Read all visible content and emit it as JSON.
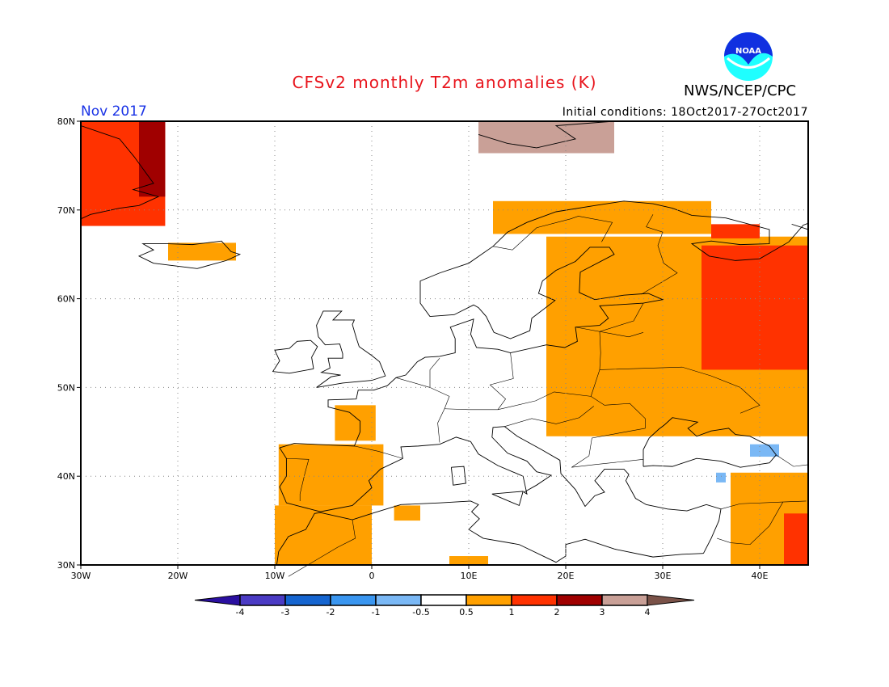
{
  "header": {
    "title": "CFSv2 monthly T2m anomalies (K)",
    "valid_month": "Nov 2017",
    "initial_conditions": "Initial conditions: 18Oct2017-27Oct2017",
    "organization": "NWS/NCEP/CPC",
    "logo_text": "NOAA"
  },
  "chart_data": {
    "type": "map",
    "title": "CFSv2 monthly T2m anomalies (K)",
    "lon_range": [
      -30,
      45
    ],
    "lat_range": [
      30,
      80
    ],
    "grid": true,
    "x_ticks": [
      "30W",
      "20W",
      "10W",
      "0",
      "10E",
      "20E",
      "30E",
      "40E"
    ],
    "y_ticks": [
      "30N",
      "40N",
      "50N",
      "60N",
      "70N",
      "80N"
    ],
    "colorbar": {
      "ticks": [
        "-4",
        "-3",
        "-2",
        "-1",
        "-0.5",
        "0.5",
        "1",
        "2",
        "3",
        "4"
      ],
      "colors": [
        "#2a0fa0",
        "#4b3bc4",
        "#1565d0",
        "#3a96f0",
        "#7ab8f5",
        "#ffffff",
        "#ffa000",
        "#ff3200",
        "#a00000",
        "#c9a097",
        "#7a5248"
      ]
    },
    "anomaly_regions": [
      {
        "name": "greenland",
        "class": "1-2",
        "lon": [
          -30,
          -21.3
        ],
        "lat": [
          68.2,
          80
        ]
      },
      {
        "name": "greenland-east",
        "class": "2-3",
        "lon": [
          -24,
          -21.3
        ],
        "lat": [
          71.5,
          80
        ]
      },
      {
        "name": "iceland",
        "class": "0.5-1",
        "lon": [
          -21,
          -14
        ],
        "lat": [
          64.3,
          66.3
        ]
      },
      {
        "name": "iberia",
        "class": "0.5-1",
        "lon": [
          -9.6,
          1.2
        ],
        "lat": [
          36.7,
          43.6
        ]
      },
      {
        "name": "western-france",
        "class": "0.5-1",
        "lon": [
          -3.8,
          0.4
        ],
        "lat": [
          44,
          48
        ]
      },
      {
        "name": "morocco-algeria",
        "class": "0.5-1",
        "lon": [
          -10,
          0
        ],
        "lat": [
          30,
          36.7
        ]
      },
      {
        "name": "tunisia",
        "class": "0.5-1",
        "lon": [
          2.3,
          5
        ],
        "lat": [
          35,
          36.7
        ]
      },
      {
        "name": "libya",
        "class": "0.5-1",
        "lon": [
          8,
          12
        ],
        "lat": [
          30,
          31
        ]
      },
      {
        "name": "northern-scandinavia",
        "class": "0.5-1",
        "lon": [
          12.5,
          35
        ],
        "lat": [
          67.3,
          71
        ]
      },
      {
        "name": "eastern-europe",
        "class": "0.5-1",
        "lon": [
          18,
          45
        ],
        "lat": [
          44.5,
          67
        ]
      },
      {
        "name": "western-russia",
        "class": "1-2",
        "lon": [
          34,
          45
        ],
        "lat": [
          52,
          66
        ]
      },
      {
        "name": "kola",
        "class": "1-2",
        "lon": [
          35,
          40
        ],
        "lat": [
          66.8,
          68.4
        ]
      },
      {
        "name": "middle-east",
        "class": "0.5-1",
        "lon": [
          37,
          45
        ],
        "lat": [
          30,
          40.4
        ]
      },
      {
        "name": "iraq",
        "class": "1-2",
        "lon": [
          42.5,
          45
        ],
        "lat": [
          30,
          35.8
        ]
      },
      {
        "name": "caucasus",
        "class": "-1--0.5",
        "lon": [
          39,
          42
        ],
        "lat": [
          42.2,
          43.6
        ]
      },
      {
        "name": "anatolia-east",
        "class": "-1--0.5",
        "lon": [
          35.5,
          36.5
        ],
        "lat": [
          39.3,
          40.4
        ]
      },
      {
        "name": "svalbard",
        "class": "3-4",
        "lon": [
          11,
          25
        ],
        "lat": [
          76.4,
          80
        ]
      }
    ]
  }
}
